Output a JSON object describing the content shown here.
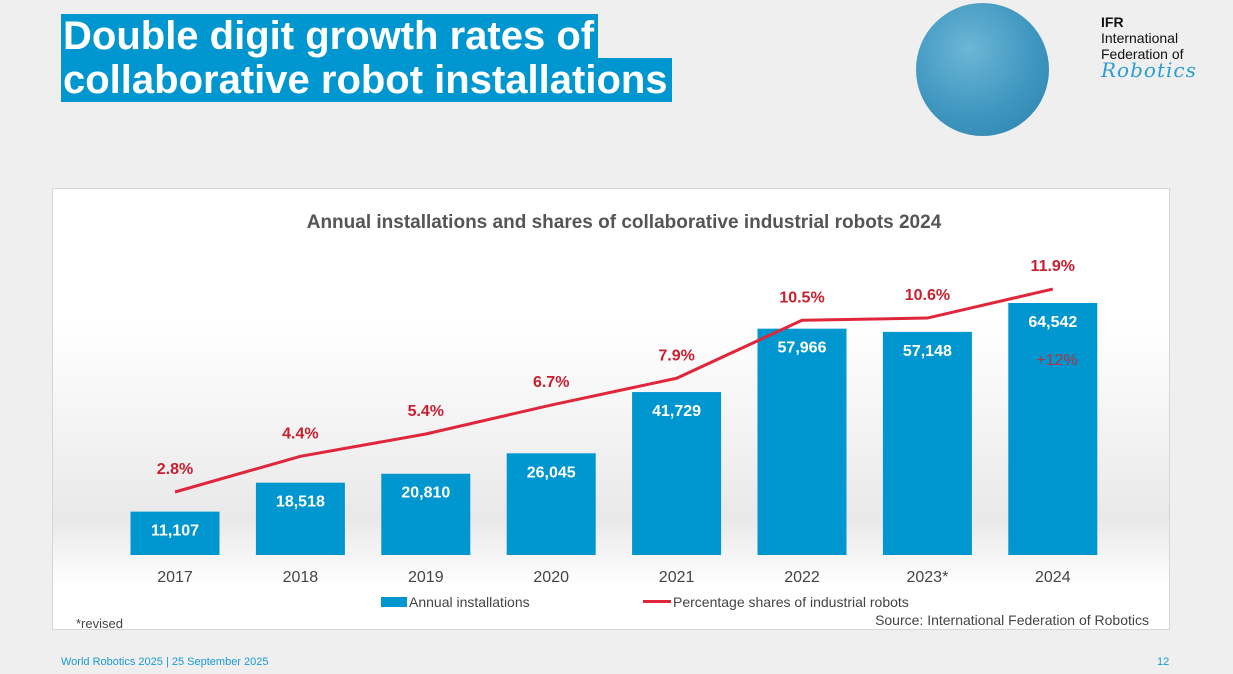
{
  "slide": {
    "title_line1": "Double digit growth rates of",
    "title_line2": "collaborative robot installations",
    "logo": {
      "line1": "IFR",
      "line2": "International",
      "line3": "Federation of",
      "line4": "Robotics"
    },
    "footer": "World Robotics 2025  | 25 September 2025",
    "page_number": "12"
  },
  "colors": {
    "bar": "#0096cf",
    "line": "#e0263a",
    "title_bg": "#0096cf"
  },
  "chart_data": {
    "type": "bar+line",
    "title": "Annual installations and shares of collaborative industrial robots 2024",
    "categories": [
      "2017",
      "2018",
      "2019",
      "2020",
      "2021",
      "2022",
      "2023*",
      "2024"
    ],
    "series": [
      {
        "name": "Annual installations",
        "type": "bar",
        "values": [
          11107,
          18518,
          20810,
          26045,
          41729,
          57966,
          57148,
          64542
        ],
        "labels": [
          "11,107",
          "18,518",
          "20,810",
          "26,045",
          "41,729",
          "57,966",
          "57,148",
          "64,542"
        ]
      },
      {
        "name": "Percentage shares of industrial robots",
        "type": "line",
        "values": [
          2.8,
          4.4,
          5.4,
          6.7,
          7.9,
          10.5,
          10.6,
          11.9
        ],
        "labels": [
          "2.8%",
          "4.4%",
          "5.4%",
          "6.7%",
          "7.9%",
          "10.5%",
          "10.6%",
          "11.9%"
        ]
      }
    ],
    "annotation": "+12%",
    "footnote": "*revised",
    "source": "Source: International Federation of Robotics",
    "legend": "bottom",
    "grid": false
  }
}
